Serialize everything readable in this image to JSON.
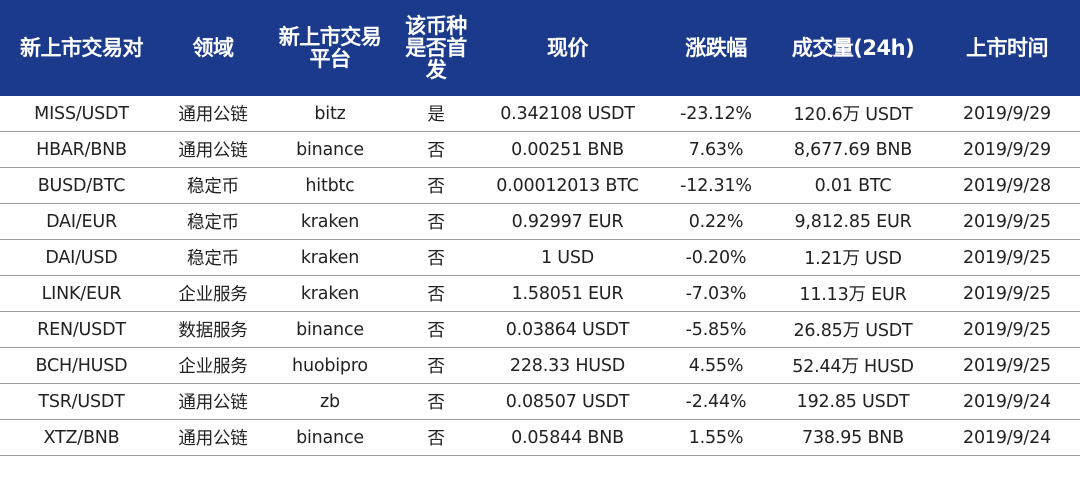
{
  "table": {
    "columns": [
      "新上市交易对",
      "领域",
      "新上市交易平台",
      "该币种是否首发",
      "现价",
      "涨跌幅",
      "成交量(24h)",
      "上市时间"
    ],
    "rows": [
      [
        "MISS/USDT",
        "通用公链",
        "bitz",
        "是",
        "0.342108 USDT",
        "-23.12%",
        "120.6万 USDT",
        "2019/9/29"
      ],
      [
        "HBAR/BNB",
        "通用公链",
        "binance",
        "否",
        "0.00251 BNB",
        "7.63%",
        "8,677.69 BNB",
        "2019/9/29"
      ],
      [
        "BUSD/BTC",
        "稳定币",
        "hitbtc",
        "否",
        "0.00012013 BTC",
        "-12.31%",
        "0.01 BTC",
        "2019/9/28"
      ],
      [
        "DAI/EUR",
        "稳定币",
        "kraken",
        "否",
        "0.92997 EUR",
        "0.22%",
        "9,812.85 EUR",
        "2019/9/25"
      ],
      [
        "DAI/USD",
        "稳定币",
        "kraken",
        "否",
        "1 USD",
        "-0.20%",
        "1.21万 USD",
        "2019/9/25"
      ],
      [
        "LINK/EUR",
        "企业服务",
        "kraken",
        "否",
        "1.58051 EUR",
        "-7.03%",
        "11.13万 EUR",
        "2019/9/25"
      ],
      [
        "REN/USDT",
        "数据服务",
        "binance",
        "否",
        "0.03864 USDT",
        "-5.85%",
        "26.85万 USDT",
        "2019/9/25"
      ],
      [
        "BCH/HUSD",
        "企业服务",
        "huobipro",
        "否",
        "228.33 HUSD",
        "4.55%",
        "52.44万 HUSD",
        "2019/9/25"
      ],
      [
        "TSR/USDT",
        "通用公链",
        "zb",
        "否",
        "0.08507 USDT",
        "-2.44%",
        "192.85 USDT",
        "2019/9/24"
      ],
      [
        "XTZ/BNB",
        "通用公链",
        "binance",
        "否",
        "0.05844 BNB",
        "1.55%",
        "738.95 BNB",
        "2019/9/24"
      ]
    ]
  },
  "colors": {
    "header_bg": "#1b3a8c",
    "header_text": "#ffffff",
    "body_text": "#222222",
    "row_divider": "#9a9a9a"
  }
}
